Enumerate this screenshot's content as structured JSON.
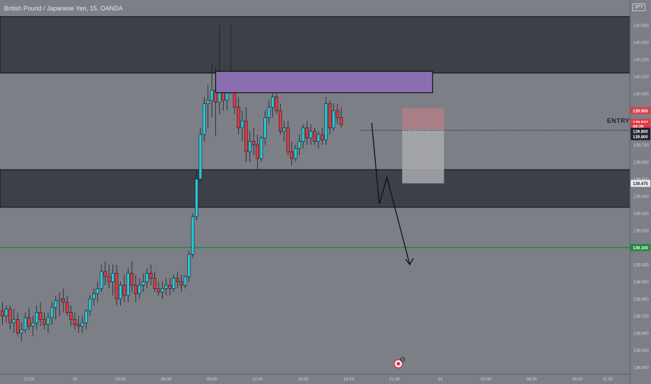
{
  "header": {
    "symbol_line": "British Pound / Japanese Yen, 15, OANDA",
    "currency_badge": "JPY"
  },
  "colors": {
    "background": "#7d7f87",
    "zone_fill": "#3e4048",
    "supply_zone": "#8a6fb0",
    "bull": "#28c8d8",
    "bear": "#e03a46",
    "green_line": "#1e8a3a",
    "risk_box": "#b07e86",
    "reward_box": "#a8aab0"
  },
  "chart_data": {
    "type": "candlestick",
    "yaxis": {
      "min": 138.35,
      "max": 140.5,
      "ticks": [
        "138.400",
        "138.500",
        "138.600",
        "138.700",
        "138.800",
        "138.900",
        "139.000",
        "139.100",
        "139.200",
        "139.300",
        "139.400",
        "139.500",
        "139.600",
        "139.700",
        "139.800",
        "139.900",
        "140.000",
        "140.100",
        "140.200",
        "140.300",
        "140.400"
      ]
    },
    "xaxis": {
      "ticks": [
        {
          "label": "21:00",
          "bar": 7
        },
        {
          "label": "23",
          "bar": 19
        },
        {
          "label": "03:00",
          "bar": 31
        },
        {
          "label": "06:00",
          "bar": 43
        },
        {
          "label": "09:00",
          "bar": 55
        },
        {
          "label": "12:00",
          "bar": 67
        },
        {
          "label": "15:00",
          "bar": 79
        },
        {
          "label": "18:00",
          "bar": 91
        },
        {
          "label": "21:00",
          "bar": 103
        },
        {
          "label": "24",
          "bar": 115
        },
        {
          "label": "03:00",
          "bar": 127
        },
        {
          "label": "06:00",
          "bar": 139
        },
        {
          "label": "09:00",
          "bar": 151
        },
        {
          "label": "11:00",
          "bar": 159
        }
      ]
    },
    "zones": [
      {
        "name": "upper-zone",
        "top": 140.45,
        "bottom": 140.12
      },
      {
        "name": "lower-zone",
        "top": 139.555,
        "bottom": 139.335
      }
    ],
    "supply_zone": {
      "top": 140.13,
      "bottom": 140.005,
      "start_bar": 56,
      "end_bar": 113
    },
    "green_line": 139.1,
    "entry_line": {
      "label": "ENTRY",
      "price": 139.785,
      "start_bar": 94
    },
    "trade_box": {
      "start_bar": 105,
      "end_bar": 116,
      "stop": 139.915,
      "entry": 139.79,
      "target": 139.475
    },
    "arrow_path": [
      {
        "bar": 97,
        "price": 139.83
      },
      {
        "bar": 99,
        "price": 139.355
      },
      {
        "bar": 101,
        "price": 139.51
      },
      {
        "bar": 107,
        "price": 139.0
      }
    ],
    "candles": [
      [
        138.73,
        138.78,
        138.65,
        138.7
      ],
      [
        138.7,
        138.76,
        138.66,
        138.74
      ],
      [
        138.74,
        138.76,
        138.62,
        138.66
      ],
      [
        138.66,
        138.74,
        138.6,
        138.68
      ],
      [
        138.68,
        138.72,
        138.58,
        138.6
      ],
      [
        138.6,
        138.66,
        138.55,
        138.62
      ],
      [
        138.62,
        138.72,
        138.6,
        138.69
      ],
      [
        138.69,
        138.75,
        138.62,
        138.64
      ],
      [
        138.64,
        138.7,
        138.58,
        138.66
      ],
      [
        138.66,
        138.76,
        138.62,
        138.72
      ],
      [
        138.72,
        138.78,
        138.64,
        138.68
      ],
      [
        138.68,
        138.72,
        138.62,
        138.65
      ],
      [
        138.65,
        138.72,
        138.6,
        138.69
      ],
      [
        138.69,
        138.78,
        138.65,
        138.75
      ],
      [
        138.75,
        138.82,
        138.68,
        138.79
      ],
      [
        138.79,
        138.84,
        138.7,
        138.8
      ],
      [
        138.8,
        138.86,
        138.72,
        138.78
      ],
      [
        138.78,
        138.82,
        138.7,
        138.72
      ],
      [
        138.72,
        138.76,
        138.64,
        138.68
      ],
      [
        138.68,
        138.72,
        138.62,
        138.65
      ],
      [
        138.65,
        138.7,
        138.6,
        138.64
      ],
      [
        138.64,
        138.7,
        138.6,
        138.66
      ],
      [
        138.66,
        138.74,
        138.62,
        138.73
      ],
      [
        138.73,
        138.82,
        138.7,
        138.8
      ],
      [
        138.8,
        138.86,
        138.76,
        138.83
      ],
      [
        138.83,
        138.9,
        138.78,
        138.86
      ],
      [
        138.86,
        139.0,
        138.84,
        138.96
      ],
      [
        138.96,
        139.02,
        138.88,
        138.93
      ],
      [
        138.93,
        139.0,
        138.86,
        138.9
      ],
      [
        138.9,
        139.0,
        138.82,
        138.95
      ],
      [
        138.95,
        139.0,
        138.76,
        138.8
      ],
      [
        138.8,
        138.9,
        138.76,
        138.88
      ],
      [
        138.88,
        138.94,
        138.78,
        138.82
      ],
      [
        138.82,
        138.98,
        138.78,
        138.95
      ],
      [
        138.95,
        139.02,
        138.84,
        138.88
      ],
      [
        138.88,
        138.94,
        138.78,
        138.83
      ],
      [
        138.83,
        138.92,
        138.8,
        138.88
      ],
      [
        138.88,
        138.95,
        138.84,
        138.9
      ],
      [
        138.9,
        138.98,
        138.86,
        138.95
      ],
      [
        138.95,
        139.0,
        138.88,
        138.92
      ],
      [
        138.92,
        138.96,
        138.84,
        138.86
      ],
      [
        138.86,
        138.9,
        138.82,
        138.84
      ],
      [
        138.84,
        138.9,
        138.8,
        138.86
      ],
      [
        138.86,
        138.92,
        138.82,
        138.88
      ],
      [
        138.88,
        138.92,
        138.82,
        138.86
      ],
      [
        138.86,
        138.94,
        138.84,
        138.92
      ],
      [
        138.92,
        138.96,
        138.86,
        138.9
      ],
      [
        138.9,
        138.94,
        138.84,
        138.88
      ],
      [
        138.88,
        138.94,
        138.86,
        138.93
      ],
      [
        138.93,
        139.08,
        138.9,
        139.06
      ],
      [
        139.06,
        139.3,
        139.04,
        139.28
      ],
      [
        139.28,
        139.55,
        139.26,
        139.5
      ],
      [
        139.5,
        139.8,
        139.48,
        139.76
      ],
      [
        139.76,
        139.98,
        139.72,
        139.94
      ],
      [
        139.94,
        140.05,
        139.8,
        139.96
      ],
      [
        139.96,
        140.18,
        139.86,
        140.02
      ],
      [
        140.02,
        140.16,
        139.75,
        139.95
      ],
      [
        139.95,
        140.4,
        139.88,
        140.02
      ],
      [
        140.02,
        140.1,
        139.9,
        139.96
      ],
      [
        139.96,
        140.1,
        139.9,
        140.06
      ],
      [
        140.06,
        140.4,
        140.0,
        140.1
      ],
      [
        140.1,
        140.12,
        139.88,
        139.92
      ],
      [
        139.92,
        139.98,
        139.76,
        139.8
      ],
      [
        139.8,
        139.9,
        139.72,
        139.84
      ],
      [
        139.84,
        139.92,
        139.6,
        139.66
      ],
      [
        139.66,
        139.78,
        139.6,
        139.72
      ],
      [
        139.72,
        139.8,
        139.64,
        139.7
      ],
      [
        139.7,
        139.76,
        139.56,
        139.62
      ],
      [
        139.62,
        139.75,
        139.6,
        139.74
      ],
      [
        139.74,
        139.9,
        139.7,
        139.86
      ],
      [
        139.86,
        139.96,
        139.82,
        139.92
      ],
      [
        139.92,
        140.0,
        139.86,
        139.98
      ],
      [
        139.98,
        140.02,
        139.88,
        139.9
      ],
      [
        139.9,
        139.94,
        139.76,
        139.78
      ],
      [
        139.78,
        139.84,
        139.72,
        139.8
      ],
      [
        139.8,
        139.84,
        139.64,
        139.66
      ],
      [
        139.66,
        139.72,
        139.58,
        139.62
      ],
      [
        139.62,
        139.7,
        139.6,
        139.68
      ],
      [
        139.68,
        139.76,
        139.64,
        139.72
      ],
      [
        139.72,
        139.82,
        139.68,
        139.8
      ],
      [
        139.8,
        139.84,
        139.7,
        139.74
      ],
      [
        139.74,
        139.82,
        139.7,
        139.78
      ],
      [
        139.78,
        139.8,
        139.7,
        139.72
      ],
      [
        139.72,
        139.78,
        139.68,
        139.76
      ],
      [
        139.76,
        139.8,
        139.7,
        139.73
      ],
      [
        139.73,
        139.98,
        139.7,
        139.94
      ],
      [
        139.94,
        139.96,
        139.76,
        139.8
      ],
      [
        139.8,
        139.94,
        139.78,
        139.9
      ],
      [
        139.9,
        139.94,
        139.82,
        139.86
      ],
      [
        139.86,
        139.92,
        139.8,
        139.82
      ]
    ],
    "price_labels": [
      {
        "text": "139.900",
        "price": 139.9,
        "bg": "#e03a46",
        "fg": "#ffffff"
      },
      {
        "text": "139.832",
        "price": 139.832,
        "bg": "#e03a46",
        "fg": "#ffffff"
      },
      {
        "text": "08:20",
        "price": 139.808,
        "bg": "#e03a46",
        "fg": "#ffffff"
      },
      {
        "text": "139.800",
        "price": 139.78,
        "bg": "#1e222d",
        "fg": "#ffffff"
      },
      {
        "text": "139.800",
        "price": 139.748,
        "bg": "#1e222d",
        "fg": "#ffffff"
      },
      {
        "text": "139.475",
        "price": 139.475,
        "bg": "#e8e8ec",
        "fg": "#1e222d"
      },
      {
        "text": "139.100",
        "price": 139.1,
        "bg": "#1e8a3a",
        "fg": "#ffffff"
      }
    ],
    "badge": {
      "label": "5",
      "bar": 104
    }
  }
}
